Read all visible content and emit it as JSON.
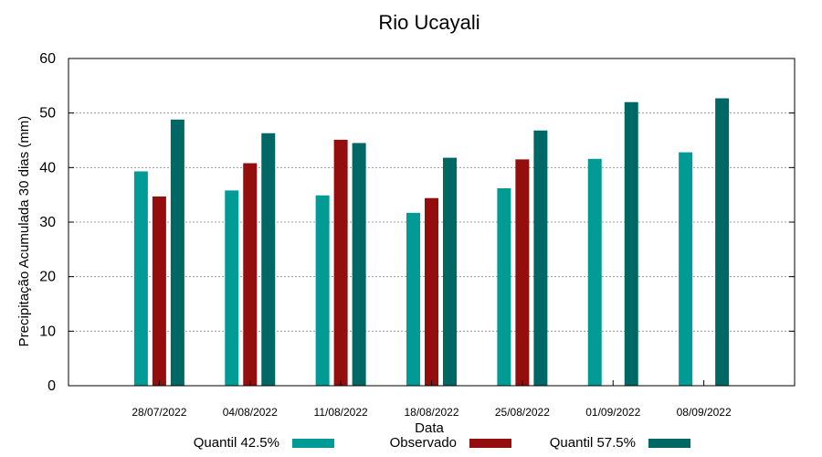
{
  "chart_data": {
    "type": "bar",
    "title": "Rio Ucayali",
    "xlabel": "Data",
    "ylabel": "Precipitação Acumulada 30 dias (mm)",
    "ylim": [
      0,
      60
    ],
    "yticks": [
      0,
      10,
      20,
      30,
      40,
      50,
      60
    ],
    "grid": true,
    "legend_position": "bottom",
    "categories": [
      "28/07/2022",
      "04/08/2022",
      "11/08/2022",
      "18/08/2022",
      "25/08/2022",
      "01/09/2022",
      "08/09/2022"
    ],
    "series": [
      {
        "name": "Quantil 42.5%",
        "color": "#009b95",
        "values": [
          39.3,
          35.8,
          34.9,
          31.7,
          36.2,
          41.6,
          42.8
        ]
      },
      {
        "name": "Observado",
        "color": "#950e0e",
        "values": [
          34.7,
          40.8,
          45.1,
          34.4,
          41.5,
          null,
          null
        ]
      },
      {
        "name": "Quantil 57.5%",
        "color": "#006864",
        "values": [
          48.8,
          46.3,
          44.5,
          41.8,
          46.8,
          52.0,
          52.7
        ]
      }
    ]
  }
}
